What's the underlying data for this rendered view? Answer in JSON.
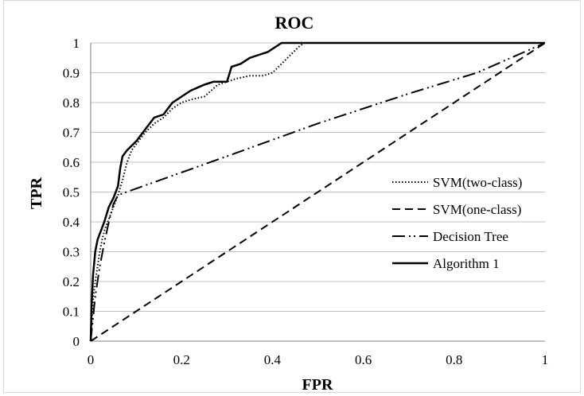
{
  "chart_data": {
    "type": "line",
    "title": "ROC",
    "xlabel": "FPR",
    "ylabel": "TPR",
    "xlim": [
      0,
      1
    ],
    "ylim": [
      0,
      1
    ],
    "grid": "horizontal",
    "legend_position": "right",
    "x_ticks": [
      "0",
      "0.2",
      "0.4",
      "0.6",
      "0.8",
      "1"
    ],
    "y_ticks": [
      "0",
      "0.1",
      "0.2",
      "0.3",
      "0.4",
      "0.5",
      "0.6",
      "0.7",
      "0.8",
      "0.9",
      "1"
    ],
    "series": [
      {
        "name": "SVM(two-class)",
        "style": "dotted",
        "color": "#000000",
        "points": [
          [
            0,
            0
          ],
          [
            0.003,
            0.08
          ],
          [
            0.006,
            0.15
          ],
          [
            0.01,
            0.2
          ],
          [
            0.015,
            0.25
          ],
          [
            0.02,
            0.3
          ],
          [
            0.025,
            0.34
          ],
          [
            0.03,
            0.37
          ],
          [
            0.04,
            0.41
          ],
          [
            0.05,
            0.45
          ],
          [
            0.06,
            0.49
          ],
          [
            0.07,
            0.54
          ],
          [
            0.08,
            0.6
          ],
          [
            0.09,
            0.64
          ],
          [
            0.1,
            0.66
          ],
          [
            0.12,
            0.7
          ],
          [
            0.14,
            0.73
          ],
          [
            0.16,
            0.75
          ],
          [
            0.18,
            0.78
          ],
          [
            0.2,
            0.8
          ],
          [
            0.22,
            0.81
          ],
          [
            0.25,
            0.82
          ],
          [
            0.28,
            0.86
          ],
          [
            0.3,
            0.87
          ],
          [
            0.32,
            0.88
          ],
          [
            0.35,
            0.89
          ],
          [
            0.38,
            0.89
          ],
          [
            0.4,
            0.9
          ],
          [
            0.42,
            0.93
          ],
          [
            0.44,
            0.96
          ],
          [
            0.46,
            0.99
          ],
          [
            0.47,
            1
          ],
          [
            0.6,
            1
          ],
          [
            0.8,
            1
          ],
          [
            1,
            1
          ]
        ]
      },
      {
        "name": "SVM(one-class)",
        "style": "dashed",
        "color": "#000000",
        "points": [
          [
            0,
            0
          ],
          [
            1,
            1
          ]
        ]
      },
      {
        "name": "Decision Tree",
        "style": "dash-dot-dot",
        "color": "#000000",
        "points": [
          [
            0,
            0
          ],
          [
            0.01,
            0.15
          ],
          [
            0.02,
            0.25
          ],
          [
            0.03,
            0.33
          ],
          [
            0.04,
            0.4
          ],
          [
            0.05,
            0.46
          ],
          [
            0.06,
            0.49
          ],
          [
            0.3,
            0.62
          ],
          [
            0.5,
            0.73
          ],
          [
            0.7,
            0.83
          ],
          [
            0.85,
            0.9
          ],
          [
            1,
            1
          ]
        ]
      },
      {
        "name": "Algorithm 1",
        "style": "solid",
        "color": "#000000",
        "points": [
          [
            0,
            0
          ],
          [
            0.002,
            0.12
          ],
          [
            0.005,
            0.22
          ],
          [
            0.01,
            0.3
          ],
          [
            0.015,
            0.34
          ],
          [
            0.02,
            0.36
          ],
          [
            0.03,
            0.4
          ],
          [
            0.04,
            0.45
          ],
          [
            0.05,
            0.48
          ],
          [
            0.06,
            0.52
          ],
          [
            0.065,
            0.58
          ],
          [
            0.07,
            0.62
          ],
          [
            0.08,
            0.64
          ],
          [
            0.1,
            0.67
          ],
          [
            0.12,
            0.71
          ],
          [
            0.14,
            0.75
          ],
          [
            0.16,
            0.76
          ],
          [
            0.18,
            0.8
          ],
          [
            0.2,
            0.82
          ],
          [
            0.22,
            0.84
          ],
          [
            0.25,
            0.86
          ],
          [
            0.27,
            0.87
          ],
          [
            0.3,
            0.87
          ],
          [
            0.31,
            0.92
          ],
          [
            0.33,
            0.93
          ],
          [
            0.35,
            0.95
          ],
          [
            0.37,
            0.96
          ],
          [
            0.39,
            0.97
          ],
          [
            0.4,
            0.98
          ],
          [
            0.41,
            0.99
          ],
          [
            0.42,
            1
          ],
          [
            0.6,
            1
          ],
          [
            0.8,
            1
          ],
          [
            1,
            1
          ]
        ]
      }
    ]
  }
}
